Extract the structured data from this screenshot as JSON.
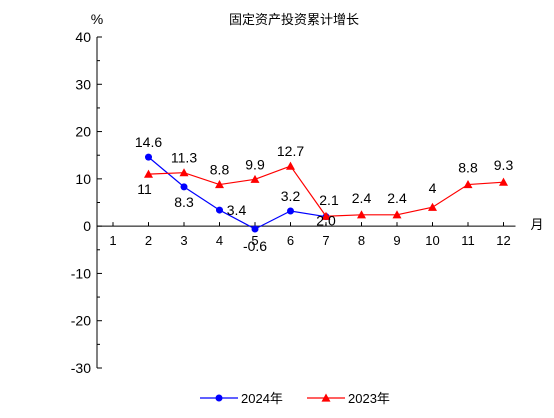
{
  "chart_data": {
    "type": "line",
    "title": "固定资产投资累计增长",
    "ylabel": "%",
    "xlabel": "月",
    "ylim": [
      -30,
      40
    ],
    "yticks": [
      -30,
      -20,
      -10,
      0,
      10,
      20,
      30,
      40
    ],
    "categories": [
      "1",
      "2",
      "3",
      "4",
      "5",
      "6",
      "7",
      "8",
      "9",
      "10",
      "11",
      "12"
    ],
    "grid": false,
    "legend_position": "bottom",
    "series": [
      {
        "name": "2024年",
        "color": "#0000ff",
        "marker": "circle",
        "values": [
          null,
          14.6,
          8.3,
          3.4,
          -0.6,
          3.2,
          2.0,
          null,
          null,
          null,
          null,
          null
        ],
        "labels": [
          "",
          "14.6",
          "8.3",
          "3.4",
          "-0.6",
          "3.2",
          "2.0",
          "",
          "",
          "",
          "",
          ""
        ]
      },
      {
        "name": "2023年",
        "color": "#ff0000",
        "marker": "triangle",
        "values": [
          null,
          11,
          11.3,
          8.8,
          9.9,
          12.7,
          2.1,
          2.4,
          2.4,
          4,
          8.8,
          9.3
        ],
        "labels": [
          "",
          "11",
          "11.3",
          "8.8",
          "9.9",
          "12.7",
          "2.1",
          "2.4",
          "2.4",
          "4",
          "8.8",
          "9.3"
        ]
      }
    ]
  }
}
